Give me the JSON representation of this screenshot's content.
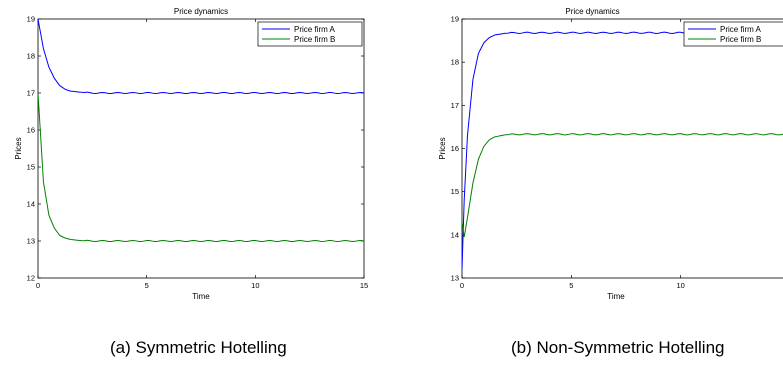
{
  "captions": [
    "(a) Symmetric Hotelling",
    "(b) Non-Symmetric Hotelling"
  ],
  "colors": {
    "firm_a": "#0000ff",
    "firm_b": "#008000"
  },
  "chart_data": [
    {
      "type": "line",
      "title": "Price dynamics",
      "xlabel": "Time",
      "ylabel": "Prices",
      "xlim": [
        0,
        15
      ],
      "ylim": [
        12,
        19
      ],
      "xticks": [
        0,
        5,
        10,
        15
      ],
      "yticks": [
        12,
        13,
        14,
        15,
        16,
        17,
        18,
        19
      ],
      "grid": false,
      "legend_position": "top-right",
      "series": [
        {
          "name": "Price firm A",
          "color": "#0000ff",
          "x": [
            0,
            0.25,
            0.5,
            0.75,
            1,
            1.25,
            1.5,
            2,
            2.5,
            3,
            4,
            5,
            6,
            8,
            10,
            12,
            14,
            15
          ],
          "y": [
            19,
            18.2,
            17.7,
            17.4,
            17.2,
            17.1,
            17.05,
            17.02,
            17.0,
            17.0,
            17.0,
            17.0,
            17.0,
            17.0,
            17.0,
            17.0,
            17.0,
            17.0
          ]
        },
        {
          "name": "Price firm B",
          "color": "#008000",
          "x": [
            0,
            0.25,
            0.5,
            0.75,
            1,
            1.25,
            1.5,
            2,
            2.5,
            3,
            4,
            5,
            6,
            8,
            10,
            12,
            14,
            15
          ],
          "y": [
            17,
            14.6,
            13.7,
            13.35,
            13.15,
            13.08,
            13.04,
            13.01,
            13.0,
            13.0,
            13.0,
            13.0,
            13.0,
            13.0,
            13.0,
            13.0,
            13.0,
            13.0
          ]
        }
      ]
    },
    {
      "type": "line",
      "title": "Price dynamics",
      "xlabel": "Time",
      "ylabel": "Prices",
      "xlim": [
        0,
        15
      ],
      "ylim": [
        13,
        19
      ],
      "xticks": [
        0,
        5,
        10
      ],
      "yticks": [
        13,
        14,
        15,
        16,
        17,
        18,
        19
      ],
      "grid": false,
      "legend_position": "top-right",
      "series": [
        {
          "name": "Price firm A",
          "color": "#0000ff",
          "x": [
            0,
            0.1,
            0.25,
            0.5,
            0.75,
            1,
            1.25,
            1.5,
            2,
            2.5,
            3,
            4,
            5,
            6,
            8,
            10,
            12,
            14,
            15
          ],
          "y": [
            13.2,
            14.8,
            16.3,
            17.6,
            18.2,
            18.45,
            18.57,
            18.63,
            18.67,
            18.68,
            18.68,
            18.68,
            18.68,
            18.68,
            18.68,
            18.68,
            18.68,
            18.68,
            18.68
          ]
        },
        {
          "name": "Price firm B",
          "color": "#008000",
          "x": [
            0,
            0.1,
            0.25,
            0.5,
            0.75,
            1,
            1.25,
            1.5,
            2,
            2.5,
            3,
            4,
            5,
            6,
            8,
            10,
            12,
            14,
            15
          ],
          "y": [
            14.3,
            13.95,
            14.4,
            15.2,
            15.75,
            16.05,
            16.2,
            16.27,
            16.32,
            16.33,
            16.33,
            16.33,
            16.33,
            16.33,
            16.33,
            16.33,
            16.33,
            16.33,
            16.33
          ]
        }
      ]
    }
  ]
}
